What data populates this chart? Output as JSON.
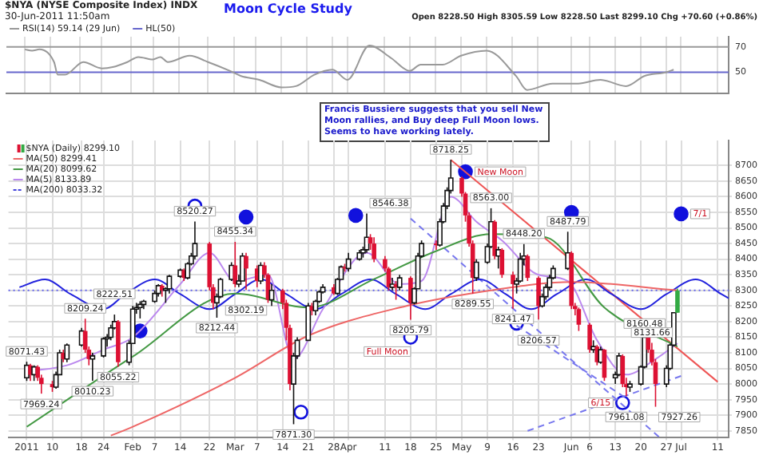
{
  "chart_data": [
    {
      "type": "line",
      "title": "Moon Cycle Study",
      "subtitle": "$NYA (NYSE Composite Index) INDX",
      "annotations": [
        "30-Jun-2011 11:50am",
        "Open 8228.50 High 8305.59 Low 8228.50 Last 8299.10 Chg +70.60 (+0.86%)"
      ],
      "series": [
        {
          "name": "RSI(14) 59.14 (29 Jun)",
          "color": "#999999",
          "x": [
            "2011-01-03",
            "2011-01-05",
            "2011-01-07",
            "2011-01-11",
            "2011-01-12",
            "2011-01-14",
            "2011-01-19",
            "2011-01-24",
            "2011-01-27",
            "2011-01-31",
            "2011-02-03",
            "2011-02-07",
            "2011-02-09",
            "2011-02-11",
            "2011-02-17",
            "2011-02-22",
            "2011-02-28",
            "2011-03-03",
            "2011-03-08",
            "2011-03-14",
            "2011-03-18",
            "2011-03-23",
            "2011-03-28",
            "2011-04-01",
            "2011-04-07",
            "2011-04-13",
            "2011-04-18",
            "2011-04-21",
            "2011-04-27",
            "2011-05-02",
            "2011-05-09",
            "2011-05-17",
            "2011-05-20",
            "2011-05-27",
            "2011-06-03",
            "2011-06-09",
            "2011-06-16",
            "2011-06-21",
            "2011-06-27",
            "2011-06-29"
          ],
          "values": [
            68,
            67,
            68,
            58,
            48,
            48,
            58,
            53,
            54,
            58,
            62,
            60,
            62,
            58,
            63,
            58,
            51,
            47,
            44,
            38,
            39,
            48,
            52,
            44,
            71,
            61,
            51,
            56,
            56,
            63,
            67,
            47,
            36,
            41,
            41,
            44,
            39,
            47,
            50,
            52
          ]
        }
      ],
      "xlim": [
        "2010-12-29",
        "2011-07-14"
      ],
      "ylim": [
        33,
        78
      ],
      "yticks": [
        50,
        70
      ],
      "xticks": [
        "2011-01-03",
        "2011-01-10",
        "2011-01-18",
        "2011-01-24",
        "2011-02-01",
        "2011-02-07",
        "2011-02-14",
        "2011-02-22",
        "2011-03-01",
        "2011-03-07",
        "2011-03-14",
        "2011-03-21",
        "2011-03-28",
        "2011-04-01",
        "2011-04-11",
        "2011-04-18",
        "2011-04-25",
        "2011-05-02",
        "2011-05-09",
        "2011-05-16",
        "2011-05-23",
        "2011-06-01",
        "2011-06-06",
        "2011-06-13",
        "2011-06-20",
        "2011-06-27",
        "2011-07-01",
        "2011-07-11"
      ],
      "ref_lines": [
        {
          "axis": "y",
          "value": 70,
          "color": "#999999"
        },
        {
          "axis": "y",
          "value": 50,
          "label": "HL(50)",
          "color": "#6666cc"
        }
      ],
      "grid": "x",
      "tick_labels": "y",
      "legend": "top left",
      "marker": "none"
    },
    {
      "type": "candlestick",
      "series": [
        {
          "name": "$NYA (Daily) 8299.10",
          "colors": [
            "#ffffff",
            "#dd1133",
            "#ffffff",
            "#dd1133",
            "#dd1133",
            "#dd1133",
            "#ffffff",
            "#ffffff",
            "#dd1133",
            "#ffffff",
            "#ffffff",
            "#dd1133",
            "#dd1133",
            "#ffffff",
            "#ffffff",
            "#ffffff",
            "#ffffff",
            "#ffffff",
            "#dd1133",
            "#ffffff",
            "#ffffff",
            "#ffffff",
            "#ffffff",
            "#ffffff",
            "#ffffff",
            "#ffffff",
            "#dd1133",
            "#ffffff",
            "#ffffff",
            "#ffffff",
            "#dd1133",
            "#ffffff",
            "#ffffff",
            "#ffffff",
            "#dd1133",
            "#dd1133",
            "#ffffff",
            "#ffffff",
            "#ffffff",
            "#dd1133",
            "#ffffff",
            "#ffffff",
            "#dd1133",
            "#dd1133",
            "#ffffff",
            "#dd1133",
            "#dd1133",
            "#ffffff",
            "#dd1133",
            "#dd1133",
            "#dd1133",
            "#ffffff",
            "#ffffff",
            "#ffffff",
            "#dd1133",
            "#ffffff",
            "#ffffff",
            "#ffffff",
            "#dd1133",
            "#ffffff",
            "#ffffff",
            "#dd1133",
            "#ffffff",
            "#ffffff",
            "#ffffff",
            "#ffffff",
            "#dd1133",
            "#dd1133",
            "#dd1133",
            "#dd1133",
            "#ffffff",
            "#dd1133",
            "#ffffff",
            "#dd1133",
            "#ffffff",
            "#ffffff",
            "#ffffff",
            "#dd1133",
            "#ffffff",
            "#ffffff",
            "#ffffff",
            "#ffffff",
            "#dd1133",
            "#dd1133",
            "#dd1133",
            "#dd1133",
            "#ffffff",
            "#ffffff",
            "#ffffff",
            "#dd1133",
            "#ffffff",
            "#dd1133",
            "#dd1133",
            "#ffffff",
            "#ffffff",
            "#ffffff",
            "#dd1133",
            "#dd1133",
            "#ffffff",
            "#ffffff",
            "#ffffff",
            "#ffffff",
            "#ffffff",
            "#dd1133",
            "#dd1133",
            "#dd1133",
            "#dd1133",
            "#ffffff",
            "#dd1133",
            "#ffffff",
            "#dd1133",
            "#ffffff",
            "#ffffff",
            "#dd1133",
            "#dd1133",
            "#ffffff",
            "#ffffff",
            "#ffffff",
            "#dd1133",
            "#dd1133",
            "#dd1133",
            "#ffffff",
            "#ffffff",
            "#ffffff",
            "#33aa44"
          ],
          "x": [
            "2011-01-03",
            "2011-01-04",
            "2011-01-05",
            "2011-01-06",
            "2011-01-07",
            "2011-01-10",
            "2011-01-11",
            "2011-01-12",
            "2011-01-13",
            "2011-01-14",
            "2011-01-18",
            "2011-01-19",
            "2011-01-20",
            "2011-01-21",
            "2011-01-24",
            "2011-01-25",
            "2011-01-26",
            "2011-01-27",
            "2011-01-28",
            "2011-01-31",
            "2011-02-01",
            "2011-02-02",
            "2011-02-03",
            "2011-02-04",
            "2011-02-07",
            "2011-02-08",
            "2011-02-09",
            "2011-02-10",
            "2011-02-11",
            "2011-02-14",
            "2011-02-15",
            "2011-02-16",
            "2011-02-17",
            "2011-02-18",
            "2011-02-22",
            "2011-02-23",
            "2011-02-24",
            "2011-02-25",
            "2011-02-28",
            "2011-03-01",
            "2011-03-02",
            "2011-03-03",
            "2011-03-04",
            "2011-03-07",
            "2011-03-08",
            "2011-03-09",
            "2011-03-10",
            "2011-03-11",
            "2011-03-14",
            "2011-03-15",
            "2011-03-16",
            "2011-03-17",
            "2011-03-18",
            "2011-03-21",
            "2011-03-22",
            "2011-03-23",
            "2011-03-24",
            "2011-03-25",
            "2011-03-28",
            "2011-03-29",
            "2011-03-30",
            "2011-03-31",
            "2011-04-01",
            "2011-04-04",
            "2011-04-05",
            "2011-04-06",
            "2011-04-07",
            "2011-04-08",
            "2011-04-11",
            "2011-04-12",
            "2011-04-13",
            "2011-04-14",
            "2011-04-15",
            "2011-04-18",
            "2011-04-19",
            "2011-04-20",
            "2011-04-21",
            "2011-04-25",
            "2011-04-26",
            "2011-04-27",
            "2011-04-28",
            "2011-04-29",
            "2011-05-02",
            "2011-05-03",
            "2011-05-04",
            "2011-05-05",
            "2011-05-06",
            "2011-05-09",
            "2011-05-10",
            "2011-05-11",
            "2011-05-12",
            "2011-05-13",
            "2011-05-16",
            "2011-05-17",
            "2011-05-18",
            "2011-05-19",
            "2011-05-20",
            "2011-05-23",
            "2011-05-24",
            "2011-05-25",
            "2011-05-26",
            "2011-05-27",
            "2011-05-31",
            "2011-06-01",
            "2011-06-02",
            "2011-06-03",
            "2011-06-06",
            "2011-06-07",
            "2011-06-08",
            "2011-06-09",
            "2011-06-10",
            "2011-06-13",
            "2011-06-14",
            "2011-06-15",
            "2011-06-16",
            "2011-06-17",
            "2011-06-20",
            "2011-06-21",
            "2011-06-22",
            "2011-06-23",
            "2011-06-24",
            "2011-06-27",
            "2011-06-28",
            "2011-06-29",
            "2011-06-30"
          ],
          "ohlc": [
            [
              8020,
              8071.43,
              8010,
              8060
            ],
            [
              8060,
              8065,
              8010,
              8030
            ],
            [
              8030,
              8060,
              8010,
              8055
            ],
            [
              8055,
              8060,
              8010,
              8020
            ],
            [
              8020,
              8030,
              7969.24,
              8000
            ],
            [
              8000,
              8010,
              7975,
              7990
            ],
            [
              7990,
              8040,
              7985,
              8030
            ],
            [
              8030,
              8110,
              8030,
              8100
            ],
            [
              8100,
              8110,
              8070,
              8080
            ],
            [
              8080,
              8130,
              8070,
              8125
            ],
            [
              8125,
              8180,
              8120,
              8170
            ],
            [
              8170,
              8209.24,
              8100,
              8110
            ],
            [
              8110,
              8120,
              8060,
              8080
            ],
            [
              8080,
              8100,
              8010.23,
              8090
            ],
            [
              8090,
              8150,
              8085,
              8145
            ],
            [
              8145,
              8160,
              8120,
              8150
            ],
            [
              8150,
              8190,
              8140,
              8180
            ],
            [
              8180,
              8222.51,
              8175,
              8200
            ],
            [
              8200,
              8205,
              8055.22,
              8070
            ],
            [
              8070,
              8140,
              8060,
              8130
            ],
            [
              8130,
              8250,
              8130,
              8240
            ],
            [
              8240,
              8260,
              8225,
              8245
            ],
            [
              8245,
              8265,
              8210,
              8255
            ],
            [
              8255,
              8270,
              8240,
              8265
            ],
            [
              8265,
              8300,
              8260,
              8290
            ],
            [
              8290,
              8320,
              8280,
              8315
            ],
            [
              8315,
              8320,
              8280,
              8300
            ],
            [
              8300,
              8310,
              8260,
              8305
            ],
            [
              8305,
              8350,
              8290,
              8345
            ],
            [
              8345,
              8370,
              8340,
              8365
            ],
            [
              8365,
              8370,
              8330,
              8340
            ],
            [
              8340,
              8390,
              8335,
              8385
            ],
            [
              8385,
              8420,
              8380,
              8410
            ],
            [
              8410,
              8520.27,
              8400,
              8450
            ],
            [
              8450,
              8455,
              8300,
              8310
            ],
            [
              8310,
              8320,
              8240,
              8260
            ],
            [
              8260,
              8290,
              8212.44,
              8280
            ],
            [
              8280,
              8340,
              8275,
              8335
            ],
            [
              8335,
              8390,
              8330,
              8380
            ],
            [
              8380,
              8455.34,
              8310,
              8320
            ],
            [
              8320,
              8350,
              8310,
              8330
            ],
            [
              8330,
              8420,
              8330,
              8410
            ],
            [
              8410,
              8420,
              8302.19,
              8370
            ],
            [
              8370,
              8380,
              8310,
              8330
            ],
            [
              8330,
              8390,
              8320,
              8380
            ],
            [
              8380,
              8390,
              8340,
              8350
            ],
            [
              8350,
              8355,
              8260,
              8270
            ],
            [
              8270,
              8320,
              8250,
              8300
            ],
            [
              8300,
              8305,
              8240,
              8260
            ],
            [
              8260,
              8270,
              8140,
              8180
            ],
            [
              8180,
              8190,
              7980,
              8000
            ],
            [
              8000,
              8100,
              7871.3,
              8090
            ],
            [
              8090,
              8150,
              8080,
              8140
            ],
            [
              8140,
              8260,
              8140,
              8250
            ],
            [
              8250,
              8260,
              8220,
              8235
            ],
            [
              8235,
              8270,
              8220,
              8265
            ],
            [
              8265,
              8300,
              8260,
              8295
            ],
            [
              8295,
              8320,
              8290,
              8310
            ],
            [
              8310,
              8320,
              8285,
              8290
            ],
            [
              8290,
              8340,
              8285,
              8335
            ],
            [
              8335,
              8380,
              8335,
              8375
            ],
            [
              8375,
              8385,
              8360,
              8370
            ],
            [
              8370,
              8420,
              8360,
              8400
            ],
            [
              8400,
              8430,
              8395,
              8420
            ],
            [
              8420,
              8440,
              8405,
              8430
            ],
            [
              8430,
              8546.38,
              8420,
              8470
            ],
            [
              8470,
              8480,
              8430,
              8450
            ],
            [
              8450,
              8470,
              8390,
              8400
            ],
            [
              8400,
              8410,
              8360,
              8370
            ],
            [
              8370,
              8375,
              8300,
              8310
            ],
            [
              8310,
              8340,
              8300,
              8320
            ],
            [
              8320,
              8330,
              8270,
              8310
            ],
            [
              8310,
              8350,
              8300,
              8340
            ],
            [
              8340,
              8345,
              8205.79,
              8260
            ],
            [
              8260,
              8310,
              8255,
              8305
            ],
            [
              8305,
              8420,
              8305,
              8410
            ],
            [
              8410,
              8460,
              8405,
              8450
            ],
            [
              8450,
              8460,
              8430,
              8445
            ],
            [
              8445,
              8530,
              8440,
              8520
            ],
            [
              8520,
              8580,
              8515,
              8570
            ],
            [
              8570,
              8630,
              8560,
              8620
            ],
            [
              8620,
              8718.25,
              8610,
              8660
            ],
            [
              8660,
              8665,
              8600,
              8610
            ],
            [
              8610,
              8615,
              8520,
              8540
            ],
            [
              8540,
              8550,
              8440,
              8450
            ],
            [
              8450,
              8460,
              8289.55,
              8340
            ],
            [
              8340,
              8400,
              8330,
              8390
            ],
            [
              8390,
              8450,
              8385,
              8440
            ],
            [
              8440,
              8563,
              8435,
              8520
            ],
            [
              8520,
              8525,
              8400,
              8410
            ],
            [
              8410,
              8440,
              8370,
              8430
            ],
            [
              8430,
              8435,
              8340,
              8350
            ],
            [
              8350,
              8360,
              8241.47,
              8320
            ],
            [
              8320,
              8340,
              8290,
              8330
            ],
            [
              8330,
              8420,
              8325,
              8400
            ],
            [
              8400,
              8448.2,
              8380,
              8410
            ],
            [
              8410,
              8415,
              8330,
              8340
            ],
            [
              8340,
              8345,
              8206.57,
              8250
            ],
            [
              8250,
              8290,
              8245,
              8280
            ],
            [
              8280,
              8320,
              8270,
              8310
            ],
            [
              8310,
              8350,
              8300,
              8340
            ],
            [
              8340,
              8380,
              8335,
              8370
            ],
            [
              8370,
              8487.79,
              8365,
              8420
            ],
            [
              8420,
              8425,
              8240,
              8250
            ],
            [
              8250,
              8260,
              8220,
              8240
            ],
            [
              8240,
              8245,
              8170,
              8190
            ],
            [
              8190,
              8195,
              8100,
              8110
            ],
            [
              8110,
              8140,
              8100,
              8120
            ],
            [
              8120,
              8125,
              8060,
              8070
            ],
            [
              8070,
              8120,
              8065,
              8110
            ],
            [
              8110,
              8112,
              8010,
              8020
            ],
            [
              8020,
              8040,
              8000,
              8030
            ],
            [
              8030,
              8100,
              8025,
              8090
            ],
            [
              8090,
              8095,
              7990,
              8000
            ],
            [
              8000,
              8020,
              7961.08,
              7990
            ],
            [
              7990,
              8010,
              7975,
              8000
            ],
            [
              8000,
              8060,
              7995,
              8055
            ],
            [
              8055,
              8160.48,
              8050,
              8150
            ],
            [
              8150,
              8155,
              8100,
              8110
            ],
            [
              8110,
              8131.66,
              8060,
              8070
            ],
            [
              8070,
              8080,
              7927.26,
              8000
            ],
            [
              8000,
              8060,
              7990,
              8050
            ],
            [
              8050,
              8130,
              8045,
              8125
            ],
            [
              8125,
              8230,
              8120,
              8228.5
            ],
            [
              8228.5,
              8305.59,
              8228.5,
              8299.1
            ]
          ]
        },
        {
          "type": "line",
          "name": "MA(50) 8299.41",
          "color": "#ee6666",
          "x": [
            "2011-01-26",
            "2011-02-01",
            "2011-03-01",
            "2011-03-21",
            "2011-04-15",
            "2011-05-10",
            "2011-06-01",
            "2011-06-30"
          ],
          "values": [
            7835,
            7863,
            8020,
            8155,
            8245,
            8300,
            8327,
            8300
          ]
        },
        {
          "type": "line",
          "name": "MA(20) 8099.62",
          "color": "#449944",
          "x": [
            "2011-01-03",
            "2011-02-01",
            "2011-03-01",
            "2011-03-21",
            "2011-04-08",
            "2011-04-25",
            "2011-05-10",
            "2011-05-25",
            "2011-06-10",
            "2011-06-30"
          ],
          "values": [
            7863,
            8088,
            8290,
            8245,
            8336,
            8426,
            8480,
            8470,
            8245,
            8120
          ]
        },
        {
          "type": "line",
          "name": "MA(5) 8133.89",
          "color": "#bb88ee",
          "x": [
            "2011-01-03",
            "2011-01-14",
            "2011-01-24",
            "2011-02-01",
            "2011-02-14",
            "2011-02-22",
            "2011-03-01",
            "2011-03-10",
            "2011-03-17",
            "2011-03-25",
            "2011-04-06",
            "2011-04-15",
            "2011-04-21",
            "2011-04-29",
            "2011-05-06",
            "2011-05-13",
            "2011-05-23",
            "2011-05-31",
            "2011-06-08",
            "2011-06-16",
            "2011-06-24",
            "2011-06-30"
          ],
          "values": [
            8040,
            8060,
            8110,
            8150,
            8320,
            8420,
            8330,
            8350,
            8080,
            8240,
            8420,
            8320,
            8330,
            8600,
            8520,
            8460,
            8350,
            8330,
            8140,
            8030,
            8080,
            8130
          ]
        },
        {
          "type": "line",
          "color": "#2222dd",
          "x": [
            "2011-01-01",
            "2011-01-08",
            "2011-01-15",
            "2011-01-24",
            "2011-01-30",
            "2011-02-07",
            "2011-02-14",
            "2011-02-22",
            "2011-03-01",
            "2011-03-08",
            "2011-03-15",
            "2011-03-23",
            "2011-03-30",
            "2011-04-07",
            "2011-04-14",
            "2011-04-22",
            "2011-04-29",
            "2011-05-07",
            "2011-05-14",
            "2011-05-21",
            "2011-05-28",
            "2011-06-05",
            "2011-06-12",
            "2011-06-20",
            "2011-06-27",
            "2011-07-05",
            "2011-07-12",
            "2011-07-14"
          ],
          "values": [
            8310,
            8335,
            8288,
            8240,
            8288,
            8335,
            8288,
            8240,
            8288,
            8335,
            8288,
            8240,
            8288,
            8335,
            8288,
            8240,
            8288,
            8335,
            8288,
            8240,
            8288,
            8335,
            8288,
            8240,
            8288,
            8335,
            8288,
            8275
          ]
        },
        {
          "type": "line",
          "color": "#ee5555",
          "x": [
            "2011-04-29",
            "2011-07-11"
          ],
          "values": [
            8718,
            8007
          ]
        },
        {
          "type": "line",
          "color": "#7777ee",
          "line_style": "dashed",
          "x": [
            "2011-04-18",
            "2011-06-25"
          ],
          "values": [
            8530,
            7830
          ]
        },
        {
          "type": "line",
          "color": "#7777ee",
          "line_style": "dashed",
          "x": [
            "2011-05-20",
            "2011-07-02"
          ],
          "values": [
            7850,
            8030
          ]
        },
        {
          "type": "line",
          "color": "#7777ee",
          "line_style": "dashed",
          "x": [
            "2011-05-17",
            "2011-06-15"
          ],
          "values": [
            8187,
            7962
          ]
        },
        {
          "type": "scatter",
          "color": "#1111dd",
          "marker": "circle",
          "x": [
            "2011-02-03",
            "2011-03-04",
            "2011-04-03",
            "2011-05-03",
            "2011-06-01",
            "2011-07-01"
          ],
          "values": [
            8170,
            8535,
            8540,
            8680,
            8550,
            8545
          ]
        },
        {
          "type": "scatter",
          "color": "#1111dd",
          "marker": "circle",
          "x": [
            "2011-02-18",
            "2011-03-19",
            "2011-04-18",
            "2011-05-17",
            "2011-06-15"
          ],
          "values": [
            8570,
            7910,
            8150,
            8195,
            7940
          ]
        }
      ],
      "annotations": [
        "Francis Bussiere suggests that you sell New Moon rallies, and Buy deep Full Moon lows. Seems to have working lately.",
        "MA(200) 8033.32",
        {
          "text": "8071.43",
          "x": "2011-01-03",
          "y": 8071.43
        },
        {
          "text": "7969.24",
          "x": "2011-01-07",
          "y": 7969.24
        },
        {
          "text": "8209.24",
          "x": "2011-01-19",
          "y": 8209.24
        },
        {
          "text": "8010.23",
          "x": "2011-01-21",
          "y": 8010.23
        },
        {
          "text": "8222.51",
          "x": "2011-01-27",
          "y": 8222.51
        },
        {
          "text": "8055.22",
          "x": "2011-01-28",
          "y": 8055.22
        },
        {
          "text": "8520.27",
          "x": "2011-02-18",
          "y": 8520.27
        },
        {
          "text": "8212.44",
          "x": "2011-02-24",
          "y": 8212.44
        },
        {
          "text": "8455.34",
          "x": "2011-03-01",
          "y": 8455.34
        },
        {
          "text": "8302.19",
          "x": "2011-03-04",
          "y": 8302.19
        },
        {
          "text": "7871.30",
          "x": "2011-03-17",
          "y": 7871.3
        },
        {
          "text": "8546.38",
          "x": "2011-04-06",
          "y": 8546.38
        },
        {
          "text": "8205.79",
          "x": "2011-04-18",
          "y": 8205.79
        },
        {
          "text": "8718.25",
          "x": "2011-04-29",
          "y": 8718.25
        },
        {
          "text": "8289.55",
          "x": "2011-05-05",
          "y": 8289.55
        },
        {
          "text": "8563.00",
          "x": "2011-05-10",
          "y": 8563
        },
        {
          "text": "8241.47",
          "x": "2011-05-16",
          "y": 8241.47
        },
        {
          "text": "8448.20",
          "x": "2011-05-19",
          "y": 8448.2
        },
        {
          "text": "8206.57",
          "x": "2011-05-23",
          "y": 8206.57
        },
        {
          "text": "8487.79",
          "x": "2011-05-31",
          "y": 8487.79
        },
        {
          "text": "7961.08",
          "x": "2011-06-16",
          "y": 7961.08
        },
        {
          "text": "8160.48",
          "x": "2011-06-21",
          "y": 8160.48
        },
        {
          "text": "8131.66",
          "x": "2011-06-23",
          "y": 8131.66
        },
        {
          "text": "7927.26",
          "x": "2011-06-24",
          "y": 7927.26
        },
        {
          "text": "New Moon",
          "x": "2011-05-03",
          "y": 8680
        },
        {
          "text": "Full Moon",
          "x": "2011-04-18",
          "y": 8150
        },
        {
          "text": "6/15",
          "x": "2011-06-15",
          "y": 7940
        },
        {
          "text": "7/1",
          "x": "2011-07-01",
          "y": 8545
        }
      ],
      "xlim": [
        "2010-12-29",
        "2011-07-14"
      ],
      "ylim": [
        7830,
        8780
      ],
      "yticks": [
        7850,
        7900,
        7950,
        8000,
        8050,
        8100,
        8150,
        8200,
        8250,
        8300,
        8350,
        8400,
        8450,
        8500,
        8550,
        8600,
        8650,
        8700
      ],
      "xticks": [
        {
          "value": "2011-01-03",
          "label": "2011"
        },
        {
          "value": "2011-01-10",
          "label": "10"
        },
        {
          "value": "2011-01-18",
          "label": "18"
        },
        {
          "value": "2011-01-24",
          "label": "24"
        },
        {
          "value": "2011-02-01",
          "label": "Feb"
        },
        {
          "value": "2011-02-07",
          "label": "7"
        },
        {
          "value": "2011-02-14",
          "label": "14"
        },
        {
          "value": "2011-02-22",
          "label": "22"
        },
        {
          "value": "2011-03-01",
          "label": "Mar"
        },
        {
          "value": "2011-03-07",
          "label": "7"
        },
        {
          "value": "2011-03-14",
          "label": "14"
        },
        {
          "value": "2011-03-21",
          "label": "21"
        },
        {
          "value": "2011-03-28",
          "label": "28"
        },
        {
          "value": "2011-04-01",
          "label": "Apr"
        },
        {
          "value": "2011-04-11",
          "label": "11"
        },
        {
          "value": "2011-04-18",
          "label": "18"
        },
        {
          "value": "2011-04-25",
          "label": "25"
        },
        {
          "value": "2011-05-02",
          "label": "May"
        },
        {
          "value": "2011-05-09",
          "label": "9"
        },
        {
          "value": "2011-05-16",
          "label": "16"
        },
        {
          "value": "2011-05-23",
          "label": "23"
        },
        {
          "value": "2011-06-01",
          "label": "Jun"
        },
        {
          "value": "2011-06-06",
          "label": "6"
        },
        {
          "value": "2011-06-13",
          "label": "13"
        },
        {
          "value": "2011-06-20",
          "label": "20"
        },
        {
          "value": "2011-06-27",
          "label": "27"
        },
        {
          "value": "2011-07-01",
          "label": "Jul"
        },
        {
          "value": "2011-07-11",
          "label": "11"
        }
      ],
      "ref_lines": [
        {
          "axis": "y",
          "value": 8300,
          "color": "#6666ee",
          "line_style": "dotted"
        }
      ],
      "grid": true,
      "legend": "top left"
    }
  ]
}
